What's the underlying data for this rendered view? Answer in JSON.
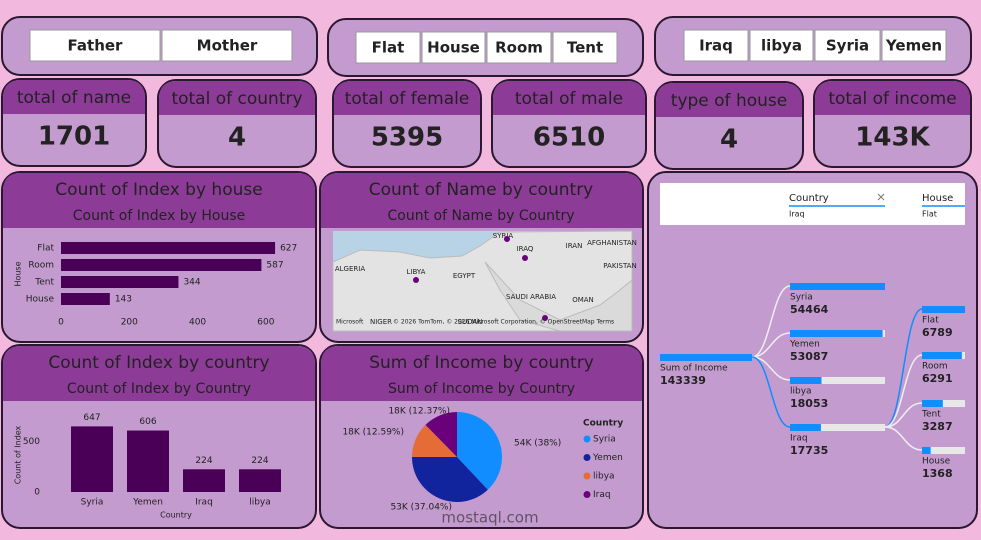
{
  "slicers": [
    {
      "items": [
        "Father",
        "Mother"
      ]
    },
    {
      "items": [
        "Flat",
        "House",
        "Room",
        "Tent"
      ]
    },
    {
      "items": [
        "Iraq",
        "libya",
        "Syria",
        "Yemen"
      ]
    }
  ],
  "cards": [
    {
      "title": "total of name",
      "value": 1701
    },
    {
      "title": "total of country",
      "value": 4
    },
    {
      "title": "total of female",
      "value": 5395
    },
    {
      "title": "total of male",
      "value": 6510
    },
    {
      "title": "type of house",
      "value": 4
    },
    {
      "title": "total of income",
      "value": "143K"
    }
  ],
  "chart_data": [
    {
      "type": "hbar",
      "title": "Count of Index by house",
      "subtitle": "Count of Index by House",
      "y_label": "House",
      "categories": [
        "Flat",
        "Room",
        "Tent",
        "House"
      ],
      "values": [
        627,
        587,
        344,
        143
      ],
      "color": "#4b0057",
      "xlim": [
        0,
        700
      ],
      "xticks": [
        0,
        200,
        400,
        600
      ]
    },
    {
      "type": "bar",
      "title": "Count of Index by country",
      "subtitle": "Count of Index by Country",
      "y_label": "Count of Index",
      "x_label": "Country",
      "categories": [
        "Syria",
        "Yemen",
        "Iraq",
        "libya"
      ],
      "values": [
        647,
        606,
        224,
        224
      ],
      "color": "#4b0057",
      "ylim": [
        0,
        700
      ],
      "yticks": [
        0,
        500
      ]
    },
    {
      "type": "pie",
      "title": "Sum of Income by country",
      "subtitle": "Sum of Income by Country",
      "legend_title": "Country",
      "categories": [
        "Syria",
        "Yemen",
        "libya",
        "Iraq"
      ],
      "values": [
        54464,
        53087,
        18053,
        17735
      ],
      "value_labels": [
        "54K (38%)",
        "53K (37.04%)",
        "18K (12.59%)",
        "18K (12.37%)"
      ],
      "colors": [
        "#118dff",
        "#12239e",
        "#e66c37",
        "#6b007b"
      ]
    }
  ],
  "map": {
    "title": "Count of Name by country",
    "subtitle": "Count of Name by Country",
    "labels": [
      "SYRIA",
      "IRAQ",
      "IRAN",
      "AFGHANISTAN",
      "ALGERIA",
      "LIBYA",
      "EGYPT",
      "PAKISTAN",
      "SAUDI ARABIA",
      "OMAN",
      "NIGER",
      "SUDAN"
    ],
    "brand": "Microsoft",
    "attribution": "© 2026 TomTom, © 2026 Microsoft Corporation, © OpenStreetMap Terms"
  },
  "decomposition_tree": {
    "filters": [
      {
        "field": "Country",
        "value": "Iraq"
      },
      {
        "field": "House",
        "value": "Flat"
      }
    ],
    "root": {
      "name": "Sum of Income",
      "value": 143339
    },
    "level1": [
      {
        "name": "Syria",
        "value": 54464
      },
      {
        "name": "Yemen",
        "value": 53087
      },
      {
        "name": "libya",
        "value": 18053
      },
      {
        "name": "Iraq",
        "value": 17735
      }
    ],
    "level2": [
      {
        "name": "Flat",
        "value": 6789
      },
      {
        "name": "Room",
        "value": 6291
      },
      {
        "name": "Tent",
        "value": 3287
      },
      {
        "name": "House",
        "value": 1368
      }
    ]
  },
  "watermark": "mostaql.com"
}
